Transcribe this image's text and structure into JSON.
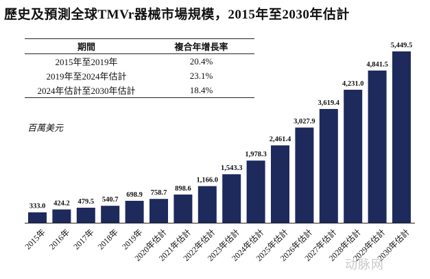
{
  "title": "歷史及預測全球TMVr器械市場規模，2015年至2030年估計",
  "table": {
    "headers": [
      "期間",
      "複合年增長率"
    ],
    "rows": [
      [
        "2015年至2019年",
        "20.4%"
      ],
      [
        "2019年至2024年估計",
        "23.1%"
      ],
      [
        "2024年估計至2030年估計",
        "18.4%"
      ]
    ]
  },
  "unit_label": "百萬美元",
  "watermark": "动脉网",
  "chart_data": {
    "type": "bar",
    "title": "歷史及預測全球TMVr器械市場規模，2015年至2030年估計",
    "ylabel": "百萬美元",
    "categories": [
      "2015年",
      "2016年",
      "2017年",
      "2018年",
      "2019年",
      "2020年估計",
      "2021年估計",
      "2022年估計",
      "2023年估計",
      "2024年估計",
      "2025年估計",
      "2026年估計",
      "2027年估計",
      "2028年估計",
      "2029年估計",
      "2030年估計"
    ],
    "values": [
      333.0,
      424.2,
      479.5,
      540.7,
      698.9,
      758.7,
      898.6,
      1166.0,
      1543.3,
      1978.3,
      2461.4,
      3027.9,
      3619.4,
      4231.0,
      4841.5,
      5449.5
    ],
    "value_labels": [
      "333.0",
      "424.2",
      "479.5",
      "540.7",
      "698.9",
      "758.7",
      "898.6",
      "1,166.0",
      "1,543.3",
      "1,978.3",
      "2,461.4",
      "3,027.9",
      "3,619.4",
      "4,231.0",
      "4,841.5",
      "5,449.5"
    ],
    "ylim": [
      0,
      5449.5
    ],
    "bar_color": "#1e2a5c",
    "grid": false,
    "legend": "none"
  }
}
